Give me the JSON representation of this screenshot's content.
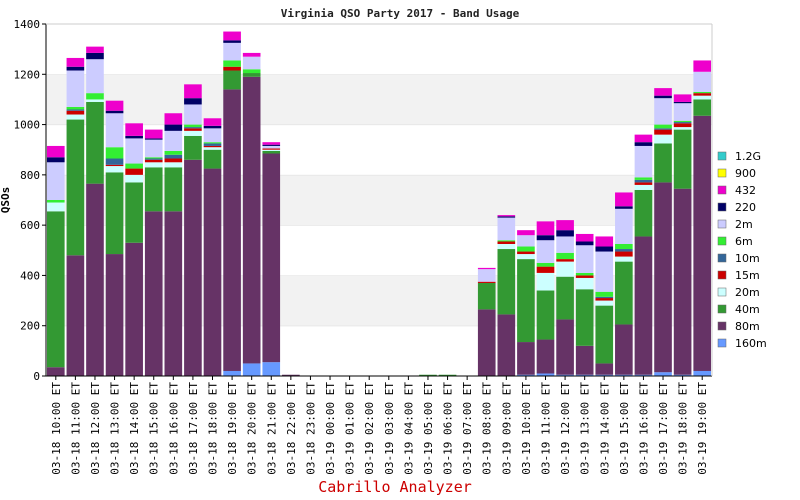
{
  "chart_data": {
    "type": "bar",
    "stacked": true,
    "title": "Virginia QSO Party 2017 - Band Usage",
    "ylabel": "QSOs",
    "xlabel": "",
    "ylim": [
      0,
      1400
    ],
    "yticks": [
      0,
      200,
      400,
      600,
      800,
      1000,
      1200,
      1400
    ],
    "grid": "horizontal bands",
    "legend_position": "right",
    "footer": "Cabrillo Analyzer",
    "categories": [
      "03-18 10:00 ET",
      "03-18 11:00 ET",
      "03-18 12:00 ET",
      "03-18 13:00 ET",
      "03-18 14:00 ET",
      "03-18 15:00 ET",
      "03-18 16:00 ET",
      "03-18 17:00 ET",
      "03-18 18:00 ET",
      "03-18 19:00 ET",
      "03-18 20:00 ET",
      "03-18 21:00 ET",
      "03-18 22:00 ET",
      "03-18 23:00 ET",
      "03-19 00:00 ET",
      "03-19 01:00 ET",
      "03-19 02:00 ET",
      "03-19 03:00 ET",
      "03-19 04:00 ET",
      "03-19 05:00 ET",
      "03-19 06:00 ET",
      "03-19 07:00 ET",
      "03-19 08:00 ET",
      "03-19 09:00 ET",
      "03-19 10:00 ET",
      "03-19 11:00 ET",
      "03-19 12:00 ET",
      "03-19 13:00 ET",
      "03-19 14:00 ET",
      "03-19 15:00 ET",
      "03-19 16:00 ET",
      "03-19 17:00 ET",
      "03-19 18:00 ET",
      "03-19 19:00 ET"
    ],
    "series": [
      {
        "name": "160m",
        "color": "#6699ff",
        "values": [
          0,
          0,
          0,
          0,
          0,
          0,
          0,
          0,
          0,
          20,
          50,
          55,
          0,
          0,
          0,
          0,
          0,
          0,
          0,
          0,
          0,
          0,
          0,
          0,
          5,
          10,
          5,
          5,
          5,
          5,
          5,
          15,
          5,
          20
        ]
      },
      {
        "name": "80m",
        "color": "#663366",
        "values": [
          35,
          480,
          765,
          485,
          530,
          655,
          655,
          860,
          825,
          1120,
          1140,
          830,
          5,
          0,
          0,
          0,
          0,
          0,
          0,
          0,
          0,
          0,
          265,
          245,
          130,
          135,
          220,
          115,
          45,
          200,
          550,
          755,
          740,
          1015
        ]
      },
      {
        "name": "40m",
        "color": "#339933",
        "values": [
          620,
          540,
          325,
          325,
          240,
          175,
          175,
          95,
          75,
          75,
          15,
          10,
          0,
          0,
          0,
          0,
          0,
          0,
          0,
          5,
          5,
          0,
          105,
          260,
          330,
          195,
          170,
          225,
          230,
          250,
          185,
          155,
          235,
          65
        ]
      },
      {
        "name": "20m",
        "color": "#ccffff",
        "values": [
          35,
          20,
          10,
          25,
          30,
          20,
          20,
          20,
          10,
          0,
          0,
          5,
          0,
          0,
          0,
          0,
          0,
          0,
          0,
          0,
          0,
          0,
          0,
          20,
          20,
          70,
          60,
          45,
          20,
          20,
          20,
          35,
          10,
          15
        ]
      },
      {
        "name": "15m",
        "color": "#cc0000",
        "values": [
          0,
          15,
          0,
          5,
          25,
          10,
          15,
          10,
          5,
          15,
          0,
          5,
          0,
          0,
          0,
          0,
          0,
          0,
          0,
          0,
          0,
          0,
          5,
          10,
          10,
          25,
          10,
          10,
          10,
          20,
          10,
          20,
          15,
          10
        ]
      },
      {
        "name": "10m",
        "color": "#336699",
        "values": [
          0,
          5,
          0,
          25,
          0,
          5,
          15,
          5,
          10,
          0,
          0,
          0,
          0,
          0,
          0,
          0,
          0,
          0,
          0,
          0,
          0,
          0,
          0,
          0,
          0,
          0,
          0,
          0,
          5,
          10,
          10,
          5,
          5,
          0
        ]
      },
      {
        "name": "6m",
        "color": "#33ee33",
        "values": [
          10,
          10,
          25,
          45,
          20,
          5,
          15,
          10,
          5,
          25,
          15,
          0,
          0,
          0,
          0,
          0,
          0,
          0,
          0,
          0,
          0,
          0,
          0,
          5,
          20,
          15,
          25,
          10,
          20,
          20,
          10,
          15,
          5,
          5
        ]
      },
      {
        "name": "2m",
        "color": "#ccccff",
        "values": [
          150,
          145,
          135,
          135,
          100,
          70,
          80,
          80,
          55,
          70,
          50,
          10,
          0,
          0,
          0,
          0,
          0,
          0,
          0,
          0,
          0,
          0,
          50,
          90,
          45,
          90,
          65,
          110,
          160,
          140,
          125,
          105,
          70,
          80
        ]
      },
      {
        "name": "220",
        "color": "#000066",
        "values": [
          20,
          15,
          25,
          10,
          10,
          5,
          25,
          25,
          10,
          10,
          0,
          5,
          0,
          0,
          0,
          0,
          0,
          0,
          0,
          0,
          0,
          0,
          0,
          5,
          0,
          20,
          25,
          15,
          20,
          10,
          15,
          10,
          5,
          0
        ]
      },
      {
        "name": "432",
        "color": "#ee00cc",
        "values": [
          45,
          35,
          25,
          40,
          50,
          35,
          45,
          55,
          30,
          35,
          15,
          10,
          0,
          0,
          0,
          0,
          0,
          0,
          0,
          0,
          0,
          0,
          5,
          5,
          20,
          55,
          40,
          30,
          40,
          55,
          30,
          30,
          30,
          45
        ]
      },
      {
        "name": "900",
        "color": "#ffff00",
        "values": [
          0,
          0,
          0,
          0,
          0,
          0,
          0,
          0,
          0,
          0,
          0,
          0,
          0,
          0,
          0,
          0,
          0,
          0,
          0,
          0,
          0,
          0,
          0,
          0,
          0,
          0,
          0,
          0,
          0,
          0,
          0,
          0,
          0,
          0
        ]
      },
      {
        "name": "1.2G",
        "color": "#33cccc",
        "values": [
          0,
          0,
          0,
          0,
          0,
          0,
          0,
          0,
          0,
          0,
          0,
          0,
          0,
          0,
          0,
          0,
          0,
          0,
          0,
          0,
          0,
          0,
          0,
          0,
          0,
          0,
          0,
          0,
          0,
          0,
          0,
          0,
          0,
          0
        ]
      }
    ]
  }
}
